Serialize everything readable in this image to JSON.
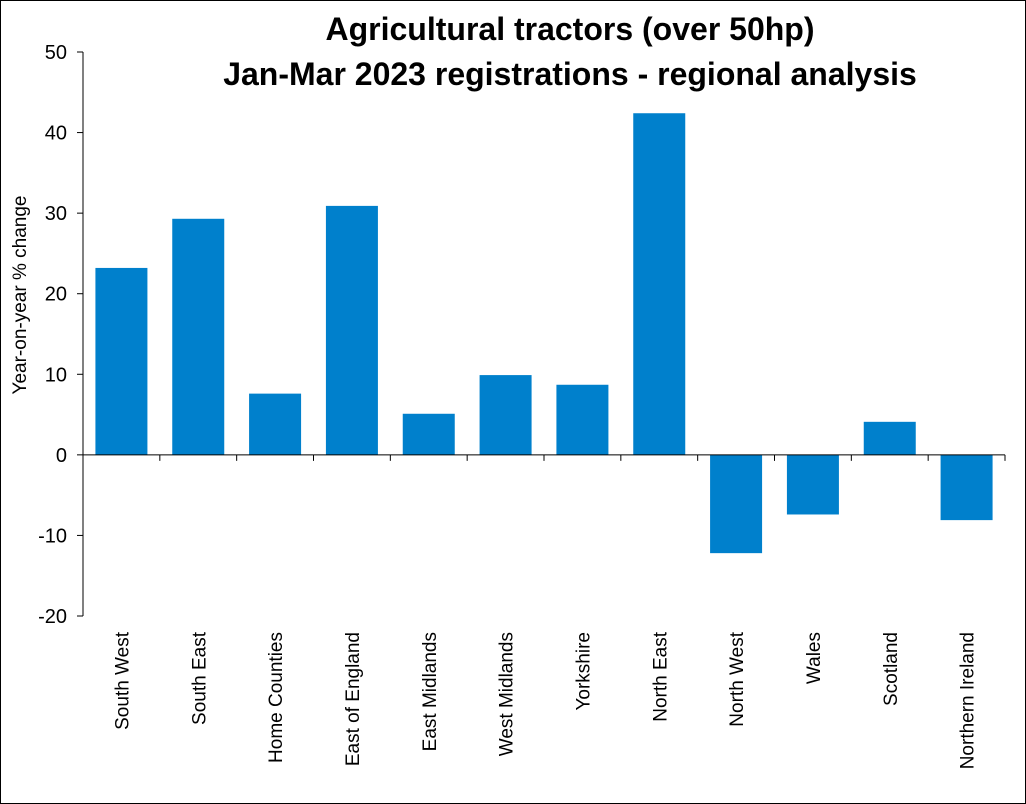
{
  "chart_data": {
    "type": "bar",
    "title_lines": [
      "Agricultural tractors (over 50hp)",
      "Jan-Mar 2023 registrations - regional analysis"
    ],
    "xlabel": "",
    "ylabel": "Year-on-year  % change",
    "ylim": [
      -20,
      50
    ],
    "yticks": [
      -20,
      -10,
      0,
      10,
      20,
      30,
      40,
      50
    ],
    "grid": false,
    "legend": "none",
    "bar_color": "#0080CC",
    "categories": [
      "South West",
      "South East",
      "Home Counties",
      "East of England",
      "East Midlands",
      "West Midlands",
      "Yorkshire",
      "North East",
      "North West",
      "Wales",
      "Scotland",
      "Northern Ireland"
    ],
    "values": [
      23.2,
      29.3,
      7.6,
      30.9,
      5.1,
      9.9,
      8.7,
      42.4,
      -12.2,
      -7.4,
      4.1,
      -8.1
    ]
  }
}
